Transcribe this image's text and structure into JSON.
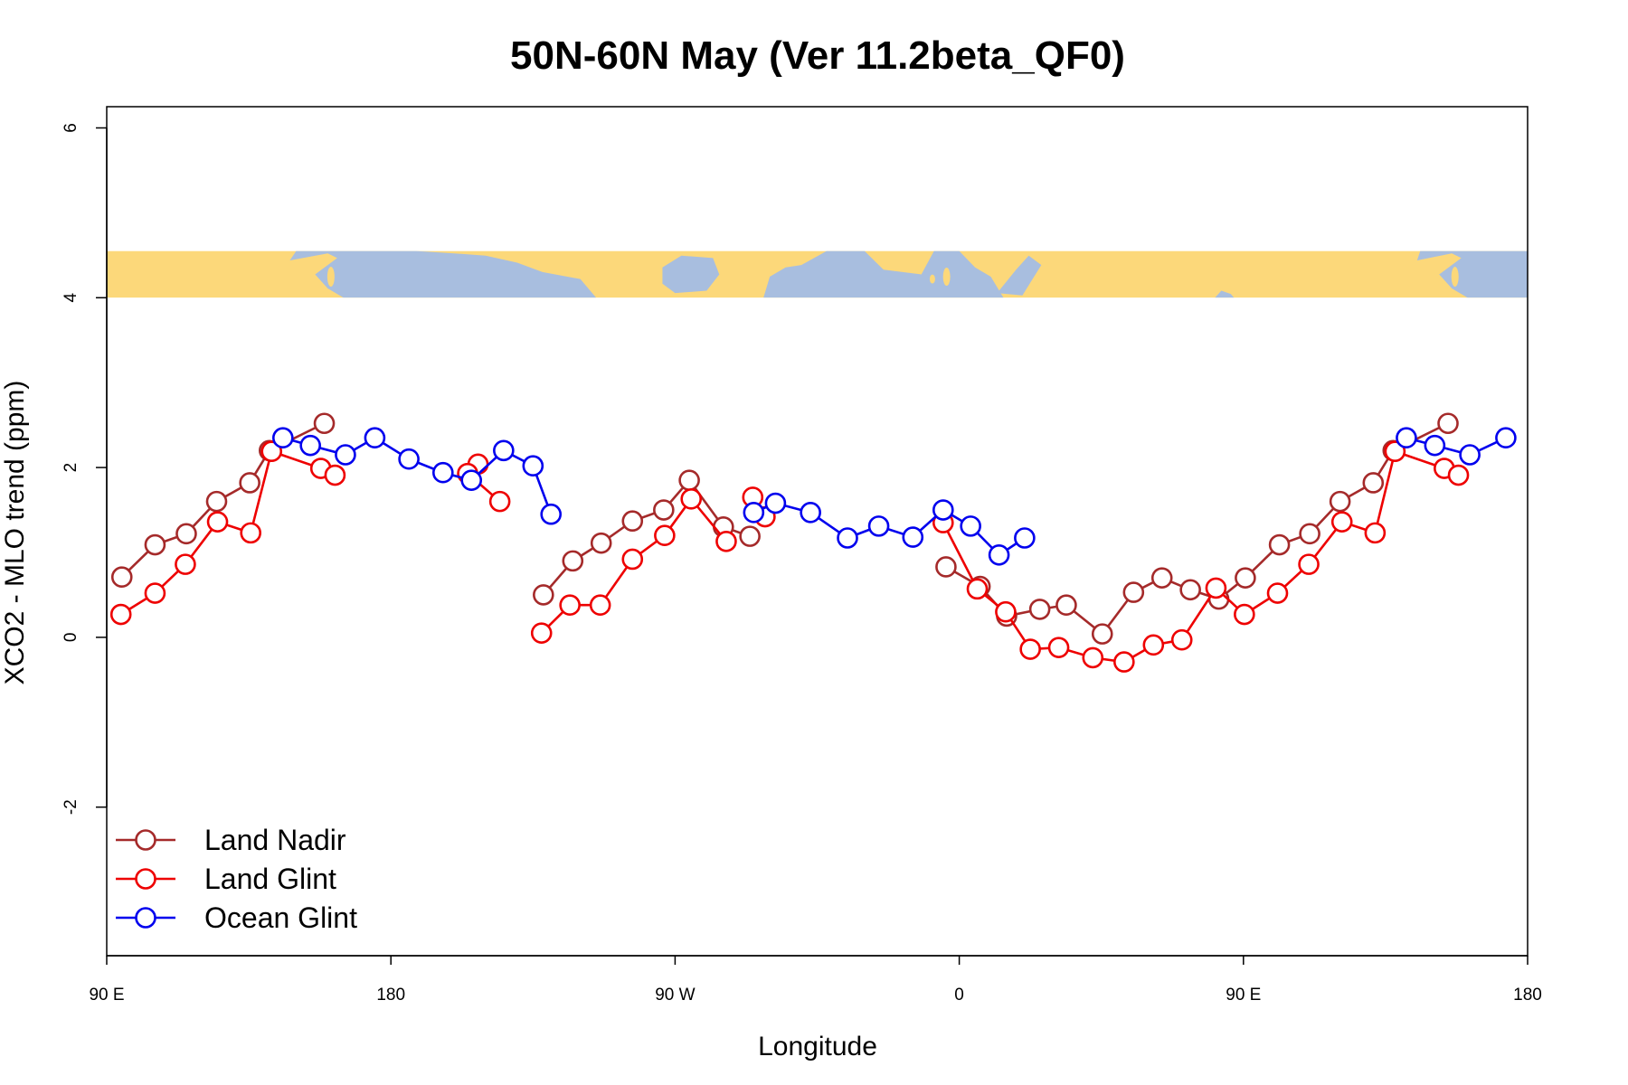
{
  "chart_data": {
    "type": "line",
    "title": "50N-60N May (Ver 11.2beta_QF0)",
    "xlabel": "Longitude",
    "ylabel": "XCO2 - MLO trend (ppm)",
    "xlim": [
      90,
      540
    ],
    "ylim": [
      -3.75,
      6.25
    ],
    "x_ticks": [
      {
        "value": 90,
        "label": "90 E"
      },
      {
        "value": 180,
        "label": "180"
      },
      {
        "value": 270,
        "label": "90 W"
      },
      {
        "value": 360,
        "label": "0"
      },
      {
        "value": 450,
        "label": "90 E"
      },
      {
        "value": 540,
        "label": "180"
      }
    ],
    "y_ticks": [
      {
        "value": -2,
        "label": "-2"
      },
      {
        "value": 0,
        "label": "0"
      },
      {
        "value": 2,
        "label": "2"
      },
      {
        "value": 4,
        "label": "4"
      },
      {
        "value": 6,
        "label": "6"
      }
    ],
    "map_strip": {
      "y_range": [
        4.0,
        4.55
      ],
      "land_color": "#fcd87a",
      "ocean_color": "#a8bedf"
    },
    "legend": {
      "position": "bottom-left"
    },
    "series": [
      {
        "name": "Land Nadir",
        "color": "#a52a2a",
        "segments": [
          [
            [
              94.8,
              0.71
            ],
            [
              105.3,
              1.09
            ],
            [
              115.2,
              1.22
            ],
            [
              124.8,
              1.6
            ],
            [
              135.3,
              1.82
            ],
            [
              141.5,
              2.2
            ],
            [
              158.9,
              2.52
            ]
          ],
          [
            [
              228.3,
              0.5
            ],
            [
              237.6,
              0.9
            ],
            [
              246.6,
              1.11
            ],
            [
              256.5,
              1.37
            ],
            [
              266.4,
              1.5
            ],
            [
              274.5,
              1.85
            ],
            [
              285.3,
              1.3
            ],
            [
              293.7,
              1.19
            ]
          ],
          [
            [
              355.8,
              0.83
            ],
            [
              366.6,
              0.6
            ],
            [
              375,
              0.25
            ],
            [
              385.5,
              0.33
            ],
            [
              393.9,
              0.38
            ],
            [
              405.3,
              0.04
            ],
            [
              415.2,
              0.53
            ],
            [
              424.2,
              0.7
            ],
            [
              433.2,
              0.56
            ],
            [
              442.2,
              0.45
            ],
            [
              450.6,
              0.7
            ],
            [
              461.4,
              1.09
            ],
            [
              471,
              1.22
            ],
            [
              480.6,
              1.6
            ],
            [
              491.1,
              1.82
            ],
            [
              497.4,
              2.2
            ],
            [
              514.8,
              2.52
            ]
          ]
        ]
      },
      {
        "name": "Land Glint",
        "color": "#ee0000",
        "segments": [
          [
            [
              94.5,
              0.27
            ],
            [
              105.3,
              0.52
            ],
            [
              114.9,
              0.86
            ],
            [
              125.1,
              1.36
            ],
            [
              135.6,
              1.23
            ],
            [
              142.2,
              2.19
            ],
            [
              157.8,
              1.99
            ],
            [
              162.3,
              1.91
            ]
          ],
          [
            [
              207.6,
              2.04
            ],
            [
              204.3,
              1.93
            ],
            [
              214.5,
              1.6
            ]
          ],
          [
            [
              227.7,
              0.05
            ],
            [
              236.7,
              0.38
            ],
            [
              246.3,
              0.38
            ],
            [
              256.5,
              0.92
            ],
            [
              266.7,
              1.2
            ],
            [
              275.1,
              1.63
            ],
            [
              286.2,
              1.13
            ]
          ],
          [
            [
              294.6,
              1.65
            ],
            [
              298.5,
              1.42
            ]
          ],
          [
            [
              354.9,
              1.35
            ],
            [
              365.7,
              0.57
            ],
            [
              374.7,
              0.3
            ],
            [
              382.5,
              -0.14
            ],
            [
              391.5,
              -0.12
            ],
            [
              402.3,
              -0.24
            ],
            [
              412.2,
              -0.29
            ],
            [
              421.5,
              -0.09
            ],
            [
              430.5,
              -0.03
            ],
            [
              441.3,
              0.58
            ],
            [
              450.3,
              0.27
            ],
            [
              460.8,
              0.52
            ],
            [
              470.7,
              0.86
            ],
            [
              481.2,
              1.36
            ],
            [
              491.7,
              1.23
            ],
            [
              498,
              2.19
            ],
            [
              513.6,
              1.99
            ],
            [
              518.1,
              1.91
            ]
          ]
        ]
      },
      {
        "name": "Ocean Glint",
        "color": "#0000ee",
        "segments": [
          [
            [
              145.8,
              2.35
            ],
            [
              154.5,
              2.26
            ],
            [
              165.6,
              2.15
            ],
            [
              174.9,
              2.35
            ],
            [
              185.7,
              2.1
            ],
            [
              196.5,
              1.94
            ],
            [
              205.5,
              1.85
            ],
            [
              215.7,
              2.2
            ],
            [
              225,
              2.02
            ],
            [
              230.7,
              1.45
            ]
          ],
          [
            [
              294.9,
              1.47
            ],
            [
              301.8,
              1.58
            ],
            [
              312.9,
              1.47
            ],
            [
              324.6,
              1.17
            ],
            [
              334.5,
              1.31
            ],
            [
              345.3,
              1.18
            ],
            [
              354.9,
              1.5
            ],
            [
              363.6,
              1.31
            ],
            [
              372.6,
              0.97
            ],
            [
              380.7,
              1.17
            ]
          ],
          [
            [
              501.6,
              2.35
            ],
            [
              510.6,
              2.26
            ],
            [
              521.7,
              2.15
            ],
            [
              533.1,
              2.35
            ]
          ]
        ]
      }
    ]
  }
}
